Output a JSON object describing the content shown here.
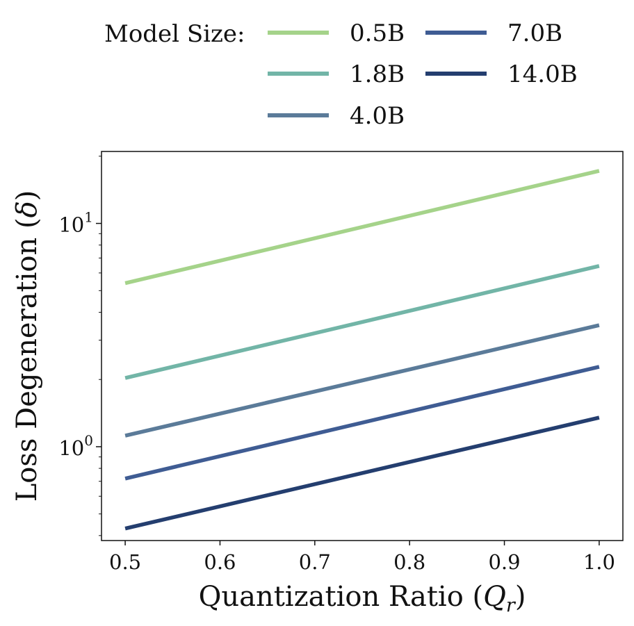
{
  "chart_data": {
    "type": "line",
    "title": "",
    "xlabel": "Quantization Ratio (",
    "xlabel_symbol": "Q",
    "xlabel_subscript": "r",
    "xlabel_close": ")",
    "ylabel": "Loss Degeneration (",
    "ylabel_symbol": "δ",
    "ylabel_close": ")",
    "xlim": [
      0.475,
      1.025
    ],
    "ylim": [
      0.38,
      21.0
    ],
    "yscale": "log",
    "grid": false,
    "x_ticks": [
      0.5,
      0.6,
      0.7,
      0.8,
      0.9,
      1.0
    ],
    "x_tick_labels": [
      "0.5",
      "0.6",
      "0.7",
      "0.8",
      "0.9",
      "1.0"
    ],
    "y_ticks": [
      {
        "value": 1,
        "base": "10",
        "exp": "0"
      },
      {
        "value": 10,
        "base": "10",
        "exp": "1"
      }
    ],
    "legend_title": "Model Size:",
    "legend_position": "top",
    "x": [
      0.5,
      1.0
    ],
    "series": [
      {
        "name": "0.5B",
        "color": "#a5d38a",
        "values": [
          5.4,
          17.2
        ]
      },
      {
        "name": "1.8B",
        "color": "#72b5a7",
        "values": [
          2.03,
          6.45
        ]
      },
      {
        "name": "4.0B",
        "color": "#5b7b99",
        "values": [
          1.12,
          3.5
        ]
      },
      {
        "name": "7.0B",
        "color": "#3f5c93",
        "values": [
          0.72,
          2.28
        ]
      },
      {
        "name": "14.0B",
        "color": "#243e6f",
        "values": [
          0.43,
          1.35
        ]
      }
    ]
  }
}
